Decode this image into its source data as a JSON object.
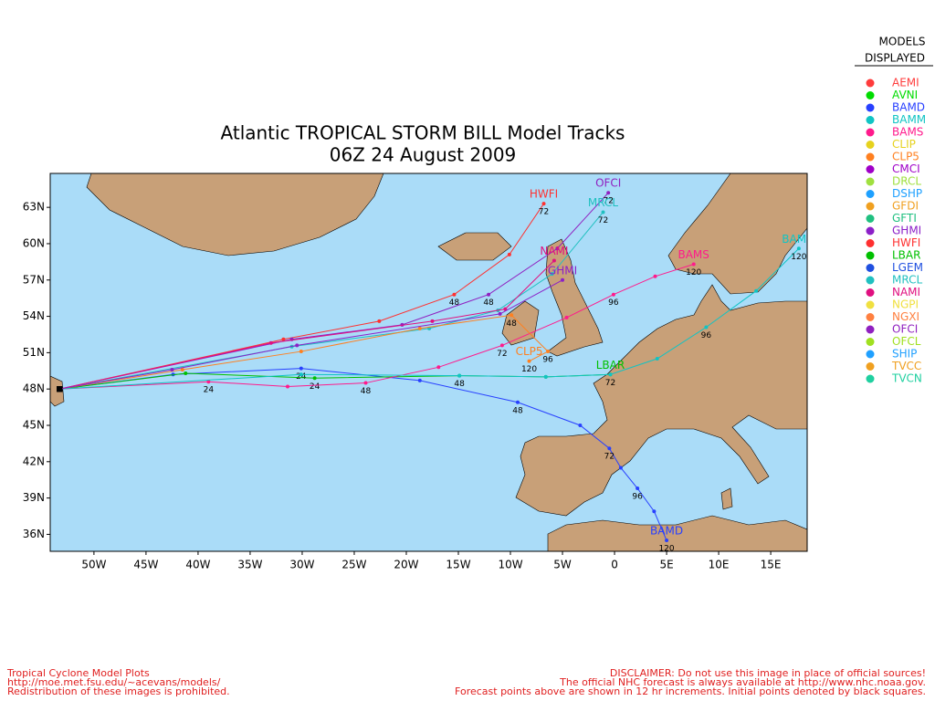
{
  "title": [
    "Atlantic TROPICAL STORM BILL Model Tracks",
    "06Z 24 August 2009"
  ],
  "legend": {
    "title": [
      "MODELS",
      "DISPLAYED"
    ],
    "models": [
      {
        "name": "AEMI",
        "color": "#ff3c3c"
      },
      {
        "name": "AVNI",
        "color": "#00dc00"
      },
      {
        "name": "BAMD",
        "color": "#2840ff"
      },
      {
        "name": "BAMM",
        "color": "#10c4c4"
      },
      {
        "name": "BAMS",
        "color": "#ff1a8c"
      },
      {
        "name": "CLIP",
        "color": "#e6d21e"
      },
      {
        "name": "CLP5",
        "color": "#ff8020"
      },
      {
        "name": "CMCI",
        "color": "#a000c8"
      },
      {
        "name": "DRCL",
        "color": "#a0e040"
      },
      {
        "name": "DSHP",
        "color": "#1ea0ff"
      },
      {
        "name": "GFDI",
        "color": "#f0a020"
      },
      {
        "name": "GFTI",
        "color": "#20c080"
      },
      {
        "name": "GHMI",
        "color": "#8c20c8"
      },
      {
        "name": "HWFI",
        "color": "#ff3030"
      },
      {
        "name": "LBAR",
        "color": "#00c000"
      },
      {
        "name": "LGEM",
        "color": "#2050e0"
      },
      {
        "name": "MRCL",
        "color": "#20c0c0"
      },
      {
        "name": "NAMI",
        "color": "#e01080"
      },
      {
        "name": "NGPI",
        "color": "#f0e040"
      },
      {
        "name": "NGXI",
        "color": "#ff8040"
      },
      {
        "name": "OFCI",
        "color": "#9020c0"
      },
      {
        "name": "OFCL",
        "color": "#a0e020"
      },
      {
        "name": "SHIP",
        "color": "#20a0ff"
      },
      {
        "name": "TVCC",
        "color": "#f0a020"
      },
      {
        "name": "TVCN",
        "color": "#20d0a0"
      }
    ]
  },
  "map": {
    "xlim": [
      -54.2,
      18.5
    ],
    "ylim": [
      34.6,
      65.8
    ],
    "xticks": [
      {
        "value": -50,
        "label": "50W"
      },
      {
        "value": -45,
        "label": "45W"
      },
      {
        "value": -40,
        "label": "40W"
      },
      {
        "value": -35,
        "label": "35W"
      },
      {
        "value": -30,
        "label": "30W"
      },
      {
        "value": -25,
        "label": "25W"
      },
      {
        "value": -20,
        "label": "20W"
      },
      {
        "value": -15,
        "label": "15W"
      },
      {
        "value": -10,
        "label": "10W"
      },
      {
        "value": -5,
        "label": "5W"
      },
      {
        "value": 0,
        "label": "0"
      },
      {
        "value": 5,
        "label": "5E"
      },
      {
        "value": 10,
        "label": "10E"
      },
      {
        "value": 15,
        "label": "15E"
      }
    ],
    "yticks": [
      {
        "value": 63,
        "label": "63N"
      },
      {
        "value": 60,
        "label": "60N"
      },
      {
        "value": 57,
        "label": "57N"
      },
      {
        "value": 54,
        "label": "54N"
      },
      {
        "value": 51,
        "label": "51N"
      },
      {
        "value": 48,
        "label": "48N"
      },
      {
        "value": 45,
        "label": "45N"
      },
      {
        "value": 42,
        "label": "42N"
      },
      {
        "value": 39,
        "label": "39N"
      },
      {
        "value": 36,
        "label": "36N"
      }
    ],
    "tracks": [
      {
        "name": "BAMD",
        "color": "#2840ff",
        "points": [
          {
            "lon": -53.3,
            "lat": 48.0
          },
          {
            "lon": -42.4,
            "lat": 49.2
          },
          {
            "lon": -30.1,
            "lat": 49.7,
            "hour": 24
          },
          {
            "lon": -18.7,
            "lat": 48.7
          },
          {
            "lon": -9.3,
            "lat": 46.9,
            "hour": 48
          },
          {
            "lon": -3.3,
            "lat": 45.0
          },
          {
            "lon": -0.5,
            "lat": 43.1,
            "hour": 72
          },
          {
            "lon": 0.6,
            "lat": 41.5
          },
          {
            "lon": 2.2,
            "lat": 39.8,
            "hour": 96
          },
          {
            "lon": 3.8,
            "lat": 37.9
          },
          {
            "lon": 5.0,
            "lat": 35.5,
            "hour": 120
          }
        ]
      },
      {
        "name": "LBAR",
        "color": "#00c000",
        "points": [
          {
            "lon": -53.3,
            "lat": 48.0
          },
          {
            "lon": -41.2,
            "lat": 49.3
          },
          {
            "lon": -28.8,
            "lat": 48.9,
            "hour": 24
          },
          {
            "lon": -14.9,
            "lat": 49.1,
            "hour": 48
          },
          {
            "lon": -6.6,
            "lat": 49.0
          },
          {
            "lon": -0.4,
            "lat": 49.2,
            "hour": 72
          }
        ]
      },
      {
        "name": "BAMS",
        "color": "#ff1a8c",
        "points": [
          {
            "lon": -53.3,
            "lat": 48.0
          },
          {
            "lon": -39.0,
            "lat": 48.6,
            "hour": 24
          },
          {
            "lon": -31.4,
            "lat": 48.2
          },
          {
            "lon": -23.9,
            "lat": 48.5,
            "hour": 48
          },
          {
            "lon": -16.9,
            "lat": 49.8
          },
          {
            "lon": -10.8,
            "lat": 51.6,
            "hour": 72
          },
          {
            "lon": -4.6,
            "lat": 53.9
          },
          {
            "lon": -0.1,
            "lat": 55.8,
            "hour": 96
          },
          {
            "lon": 3.9,
            "lat": 57.3
          },
          {
            "lon": 7.6,
            "lat": 58.3,
            "hour": 120
          }
        ]
      },
      {
        "name": "BAMM",
        "color": "#10c4c4",
        "points": [
          {
            "lon": -53.3,
            "lat": 48.0
          },
          {
            "lon": -30.1,
            "lat": 49.2
          },
          {
            "lon": -14.9,
            "lat": 49.1
          },
          {
            "lon": -6.6,
            "lat": 49.0
          },
          {
            "lon": -0.4,
            "lat": 49.2
          },
          {
            "lon": 4.1,
            "lat": 50.5
          },
          {
            "lon": 8.8,
            "lat": 53.1,
            "hour": 96
          },
          {
            "lon": 13.6,
            "lat": 56.1
          },
          {
            "lon": 17.7,
            "lat": 59.6,
            "hour": 120
          }
        ]
      },
      {
        "name": "HWFI",
        "color": "#ff3030",
        "points": [
          {
            "lon": -53.3,
            "lat": 48.0
          },
          {
            "lon": -31.8,
            "lat": 52.1
          },
          {
            "lon": -22.6,
            "lat": 53.6
          },
          {
            "lon": -15.4,
            "lat": 55.8,
            "hour": 48
          },
          {
            "lon": -10.1,
            "lat": 59.1
          },
          {
            "lon": -6.8,
            "lat": 63.3,
            "hour": 72
          }
        ]
      },
      {
        "name": "OFCI",
        "color": "#9020c0",
        "points": [
          {
            "lon": -53.3,
            "lat": 48.0
          },
          {
            "lon": -31.0,
            "lat": 52.1
          },
          {
            "lon": -20.4,
            "lat": 53.3
          },
          {
            "lon": -12.1,
            "lat": 55.8,
            "hour": 48
          },
          {
            "lon": -5.5,
            "lat": 59.6
          },
          {
            "lon": -0.6,
            "lat": 64.2,
            "hour": 72
          }
        ]
      },
      {
        "name": "MRCL",
        "color": "#20c0c0",
        "points": [
          {
            "lon": -53.3,
            "lat": 48.0
          },
          {
            "lon": -31.0,
            "lat": 51.5
          },
          {
            "lon": -17.8,
            "lat": 53.0
          },
          {
            "lon": -11.2,
            "lat": 54.5
          },
          {
            "lon": -6.0,
            "lat": 57.5
          },
          {
            "lon": -1.1,
            "lat": 62.6,
            "hour": 72
          }
        ]
      },
      {
        "name": "CLP5",
        "color": "#ff8020",
        "points": [
          {
            "lon": -53.3,
            "lat": 48.0
          },
          {
            "lon": -41.5,
            "lat": 49.6
          },
          {
            "lon": -30.1,
            "lat": 51.1
          },
          {
            "lon": -18.7,
            "lat": 53.0
          },
          {
            "lon": -9.9,
            "lat": 54.1,
            "hour": 48
          },
          {
            "lon": -6.4,
            "lat": 51.1,
            "hour": 96
          },
          {
            "lon": -8.2,
            "lat": 50.3,
            "hour": 120
          }
        ]
      },
      {
        "name": "NAMI",
        "color": "#e01080",
        "points": [
          {
            "lon": -53.3,
            "lat": 48.0
          },
          {
            "lon": -33.0,
            "lat": 51.8
          },
          {
            "lon": -17.5,
            "lat": 53.6
          },
          {
            "lon": -10.5,
            "lat": 54.6
          },
          {
            "lon": -5.8,
            "lat": 58.6
          }
        ]
      },
      {
        "name": "GHMI",
        "color": "#8c20c8",
        "points": [
          {
            "lon": -53.3,
            "lat": 48.0
          },
          {
            "lon": -42.5,
            "lat": 49.6
          },
          {
            "lon": -30.5,
            "lat": 51.6
          },
          {
            "lon": -11.0,
            "lat": 54.2
          },
          {
            "lon": -5.0,
            "lat": 57.0
          }
        ]
      }
    ]
  },
  "footer": {
    "left": [
      "Tropical Cyclone Model Plots",
      "http://moe.met.fsu.edu/~acevans/models/",
      "Redistribution of these images is prohibited."
    ],
    "right": [
      "DISCLAIMER: Do not use this image in place of official sources!",
      "The official NHC forecast is always available at http://www.nhc.noaa.gov.",
      "Forecast points above are shown in 12 hr increments.  Initial points denoted by black squares."
    ]
  }
}
